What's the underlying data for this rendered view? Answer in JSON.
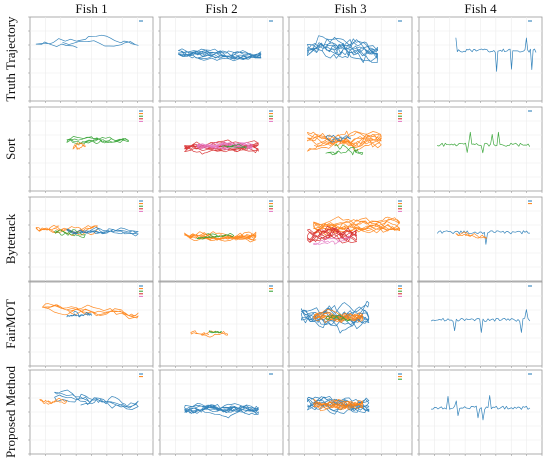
{
  "figure": {
    "columns": [
      "Fish 1",
      "Fish 2",
      "Fish 3",
      "Fish 4"
    ],
    "rows": [
      "Truth Trajectory",
      "Sort",
      "Bytetrack",
      "FairMOT",
      "Proposed Method"
    ]
  },
  "colors": {
    "blue": "#1f77b4",
    "orange": "#ff7f0e",
    "green": "#2ca02c",
    "red": "#d62728",
    "pink": "#e377c2",
    "grid": "#ececec",
    "frame": "#9a9a9a"
  },
  "chart_data": {
    "type": "line",
    "layout": "5x4 grid of small trajectory plots",
    "grid": true,
    "legend_placement": "top-right",
    "panels": [
      {
        "row": "Truth Trajectory",
        "col": "Fish 1",
        "ids": 1,
        "series": [
          {
            "color": "blue",
            "extent_x": [
              0.05,
              0.88
            ],
            "extent_y": [
              0.15,
              0.42
            ],
            "center_y": 0.3,
            "style": "long loops"
          }
        ]
      },
      {
        "row": "Truth Trajectory",
        "col": "Fish 2",
        "ids": 1,
        "series": [
          {
            "color": "blue",
            "extent_x": [
              0.15,
              0.82
            ],
            "extent_y": [
              0.35,
              0.6
            ],
            "center_y": 0.46,
            "style": "dense"
          }
        ]
      },
      {
        "row": "Truth Trajectory",
        "col": "Fish 3",
        "ids": 1,
        "series": [
          {
            "color": "blue",
            "extent_x": [
              0.15,
              0.72
            ],
            "extent_y": [
              0.15,
              0.65
            ],
            "center_y": 0.4,
            "style": "dense"
          }
        ]
      },
      {
        "row": "Truth Trajectory",
        "col": "Fish 4",
        "ids": 1,
        "series": [
          {
            "color": "blue",
            "extent_x": [
              0.3,
              0.95
            ],
            "extent_y": [
              0.25,
              0.7
            ],
            "center_y": 0.4,
            "style": "sparse"
          }
        ]
      },
      {
        "row": "Sort",
        "col": "Fish 1",
        "ids": 5,
        "series": [
          {
            "color": "green",
            "extent_x": [
              0.3,
              0.8
            ],
            "extent_y": [
              0.3,
              0.5
            ],
            "center_y": 0.4,
            "style": "loops"
          },
          {
            "color": "orange",
            "extent_x": [
              0.35,
              0.45
            ],
            "extent_y": [
              0.4,
              0.55
            ],
            "center_y": 0.48,
            "style": "fragment"
          }
        ]
      },
      {
        "row": "Sort",
        "col": "Fish 2",
        "ids": 5,
        "series": [
          {
            "color": "red",
            "extent_x": [
              0.2,
              0.8
            ],
            "extent_y": [
              0.35,
              0.6
            ],
            "center_y": 0.48,
            "style": "dense"
          },
          {
            "color": "pink",
            "extent_x": [
              0.3,
              0.75
            ],
            "extent_y": [
              0.38,
              0.55
            ],
            "center_y": 0.46,
            "style": "dense"
          },
          {
            "color": "green",
            "extent_x": [
              0.5,
              0.7
            ],
            "extent_y": [
              0.42,
              0.52
            ],
            "center_y": 0.47,
            "style": "fragment"
          }
        ]
      },
      {
        "row": "Sort",
        "col": "Fish 3",
        "ids": 5,
        "series": [
          {
            "color": "orange",
            "extent_x": [
              0.15,
              0.75
            ],
            "extent_y": [
              0.2,
              0.6
            ],
            "center_y": 0.4,
            "style": "dense"
          },
          {
            "color": "green",
            "extent_x": [
              0.3,
              0.6
            ],
            "extent_y": [
              0.35,
              0.65
            ],
            "center_y": 0.5,
            "style": "fragment"
          },
          {
            "color": "blue",
            "extent_x": [
              0.3,
              0.5
            ],
            "extent_y": [
              0.3,
              0.45
            ],
            "center_y": 0.38,
            "style": "fragment"
          }
        ]
      },
      {
        "row": "Sort",
        "col": "Fish 4",
        "ids": 1,
        "series": [
          {
            "color": "green",
            "extent_x": [
              0.15,
              0.9
            ],
            "extent_y": [
              0.3,
              0.6
            ],
            "center_y": 0.45,
            "style": "sparse"
          }
        ]
      },
      {
        "row": "Bytetrack",
        "col": "Fish 1",
        "ids": 5,
        "series": [
          {
            "color": "orange",
            "extent_x": [
              0.05,
              0.55
            ],
            "extent_y": [
              0.3,
              0.55
            ],
            "center_y": 0.4,
            "style": "loops"
          },
          {
            "color": "blue",
            "extent_x": [
              0.3,
              0.88
            ],
            "extent_y": [
              0.3,
              0.5
            ],
            "center_y": 0.4,
            "style": "loops"
          },
          {
            "color": "green",
            "extent_x": [
              0.2,
              0.45
            ],
            "extent_y": [
              0.32,
              0.5
            ],
            "center_y": 0.42,
            "style": "fragment"
          }
        ]
      },
      {
        "row": "Bytetrack",
        "col": "Fish 2",
        "ids": 5,
        "series": [
          {
            "color": "orange",
            "extent_x": [
              0.2,
              0.78
            ],
            "extent_y": [
              0.3,
              0.55
            ],
            "center_y": 0.45,
            "style": "dense"
          },
          {
            "color": "green",
            "extent_x": [
              0.3,
              0.6
            ],
            "extent_y": [
              0.4,
              0.52
            ],
            "center_y": 0.46,
            "style": "fragment"
          }
        ]
      },
      {
        "row": "Bytetrack",
        "col": "Fish 3",
        "ids": 5,
        "series": [
          {
            "color": "orange",
            "extent_x": [
              0.2,
              0.9
            ],
            "extent_y": [
              0.2,
              0.55
            ],
            "center_y": 0.35,
            "style": "dense"
          },
          {
            "color": "red",
            "extent_x": [
              0.15,
              0.55
            ],
            "extent_y": [
              0.3,
              0.65
            ],
            "center_y": 0.45,
            "style": "dense"
          },
          {
            "color": "pink",
            "extent_x": [
              0.2,
              0.5
            ],
            "extent_y": [
              0.4,
              0.6
            ],
            "center_y": 0.5,
            "style": "fragment"
          }
        ]
      },
      {
        "row": "Bytetrack",
        "col": "Fish 4",
        "ids": 2,
        "series": [
          {
            "color": "blue",
            "extent_x": [
              0.15,
              0.9
            ],
            "extent_y": [
              0.3,
              0.6
            ],
            "center_y": 0.42,
            "style": "sparse"
          },
          {
            "color": "orange",
            "extent_x": [
              0.3,
              0.55
            ],
            "extent_y": [
              0.4,
              0.55
            ],
            "center_y": 0.45,
            "style": "fragment"
          }
        ]
      },
      {
        "row": "FairMOT",
        "col": "Fish 1",
        "ids": 5,
        "series": [
          {
            "color": "orange",
            "extent_x": [
              0.1,
              0.88
            ],
            "extent_y": [
              0.2,
              0.5
            ],
            "center_y": 0.35,
            "style": "loops"
          },
          {
            "color": "blue",
            "extent_x": [
              0.3,
              0.5
            ],
            "extent_y": [
              0.3,
              0.45
            ],
            "center_y": 0.38,
            "style": "fragment"
          }
        ]
      },
      {
        "row": "FairMOT",
        "col": "Fish 2",
        "ids": 3,
        "series": [
          {
            "color": "orange",
            "extent_x": [
              0.25,
              0.55
            ],
            "extent_y": [
              0.55,
              0.7
            ],
            "center_y": 0.62,
            "style": "fragment"
          },
          {
            "color": "green",
            "extent_x": [
              0.4,
              0.5
            ],
            "extent_y": [
              0.58,
              0.65
            ],
            "center_y": 0.6,
            "style": "fragment"
          }
        ]
      },
      {
        "row": "FairMOT",
        "col": "Fish 3",
        "ids": 5,
        "series": [
          {
            "color": "blue",
            "extent_x": [
              0.1,
              0.65
            ],
            "extent_y": [
              0.15,
              0.65
            ],
            "center_y": 0.4,
            "style": "dense"
          },
          {
            "color": "orange",
            "extent_x": [
              0.2,
              0.6
            ],
            "extent_y": [
              0.3,
              0.55
            ],
            "center_y": 0.42,
            "style": "dense"
          },
          {
            "color": "green",
            "extent_x": [
              0.3,
              0.5
            ],
            "extent_y": [
              0.35,
              0.5
            ],
            "center_y": 0.42,
            "style": "fragment"
          }
        ]
      },
      {
        "row": "FairMOT",
        "col": "Fish 4",
        "ids": 1,
        "series": [
          {
            "color": "blue",
            "extent_x": [
              0.1,
              0.9
            ],
            "extent_y": [
              0.3,
              0.6
            ],
            "center_y": 0.45,
            "style": "sparse"
          }
        ]
      },
      {
        "row": "Proposed Method",
        "col": "Fish 1",
        "ids": 2,
        "series": [
          {
            "color": "blue",
            "extent_x": [
              0.2,
              0.88
            ],
            "extent_y": [
              0.2,
              0.55
            ],
            "center_y": 0.38,
            "style": "loops"
          },
          {
            "color": "orange",
            "extent_x": [
              0.08,
              0.3
            ],
            "extent_y": [
              0.3,
              0.45
            ],
            "center_y": 0.38,
            "style": "fragment"
          }
        ]
      },
      {
        "row": "Proposed Method",
        "col": "Fish 2",
        "ids": 1,
        "series": [
          {
            "color": "blue",
            "extent_x": [
              0.2,
              0.8
            ],
            "extent_y": [
              0.35,
              0.6
            ],
            "center_y": 0.46,
            "style": "dense"
          }
        ]
      },
      {
        "row": "Proposed Method",
        "col": "Fish 3",
        "ids": 3,
        "series": [
          {
            "color": "blue",
            "extent_x": [
              0.15,
              0.65
            ],
            "extent_y": [
              0.25,
              0.6
            ],
            "center_y": 0.42,
            "style": "dense"
          },
          {
            "color": "orange",
            "extent_x": [
              0.2,
              0.6
            ],
            "extent_y": [
              0.3,
              0.55
            ],
            "center_y": 0.42,
            "style": "dense"
          }
        ]
      },
      {
        "row": "Proposed Method",
        "col": "Fish 4",
        "ids": 1,
        "series": [
          {
            "color": "blue",
            "extent_x": [
              0.1,
              0.9
            ],
            "extent_y": [
              0.3,
              0.6
            ],
            "center_y": 0.45,
            "style": "sparse"
          }
        ]
      }
    ]
  }
}
